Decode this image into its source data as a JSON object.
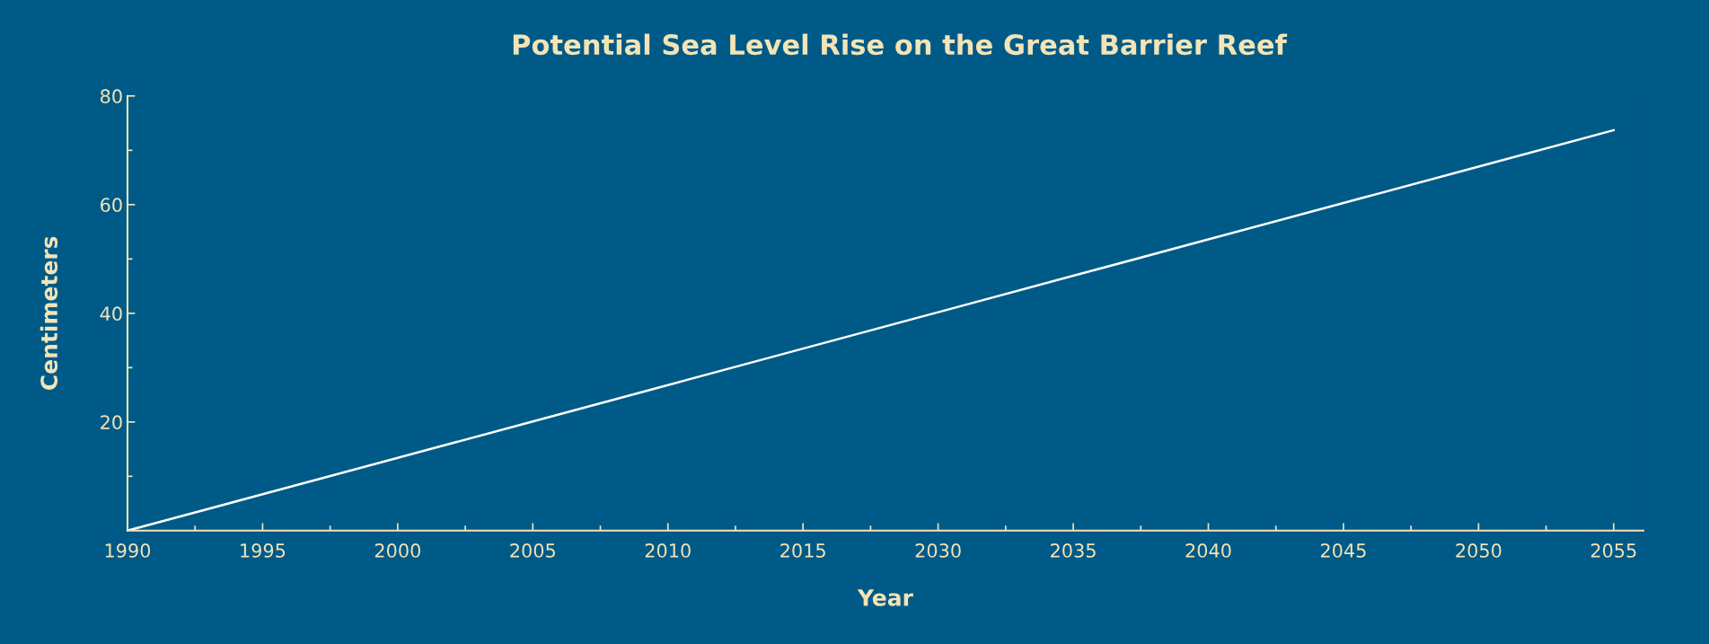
{
  "chart_data": {
    "type": "line",
    "title": "Potential Sea Level Rise on the Great Barrier Reef",
    "xlabel": "Year",
    "ylabel": "Centimeters",
    "categories": [
      "1990",
      "1995",
      "2000",
      "2005",
      "2010",
      "2015",
      "2030",
      "2035",
      "2040",
      "2045",
      "2050",
      "2055"
    ],
    "series": [
      {
        "color": "#ffffff",
        "values": [
          0,
          6.7,
          13.4,
          20.1,
          26.8,
          33.5,
          40.2,
          46.9,
          53.6,
          60.3,
          67.0,
          73.7
        ]
      }
    ],
    "ylim": [
      0,
      80
    ],
    "yticks": [
      20,
      40,
      60,
      80
    ],
    "grid": false,
    "marker": "none",
    "line_style": "solid"
  }
}
